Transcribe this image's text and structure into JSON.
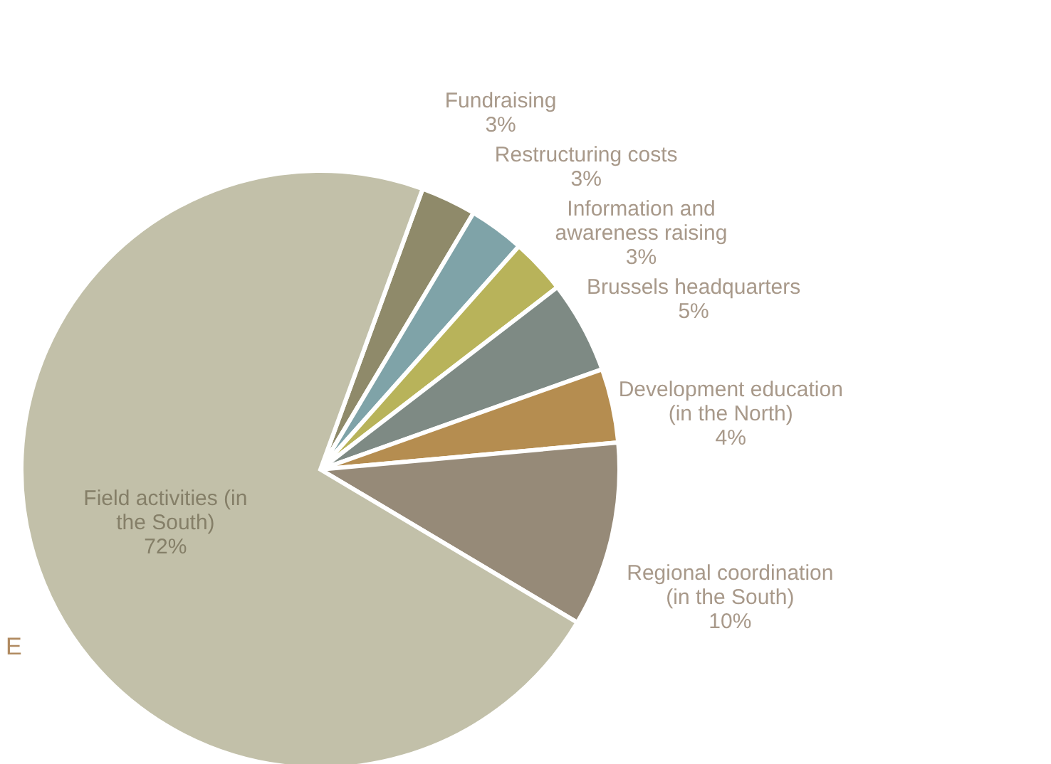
{
  "chart_data": {
    "type": "pie",
    "categories": [
      "Fundraising",
      "Restructuring costs",
      "Information and awareness raising",
      "Brussels headquarters",
      "Development education (in the North)",
      "Regional coordination (in the South)",
      "Field activities (in the South)"
    ],
    "values": [
      3,
      3,
      3,
      5,
      4,
      10,
      72
    ],
    "value_labels": [
      "3%",
      "3%",
      "3%",
      "5%",
      "4%",
      "10%",
      "72%"
    ],
    "colors": [
      "#8f8a6a",
      "#7fa3a8",
      "#b8b35a",
      "#7e8a84",
      "#b58d50",
      "#968a78",
      "#c2c0a9"
    ],
    "annotations": [
      "E"
    ]
  }
}
